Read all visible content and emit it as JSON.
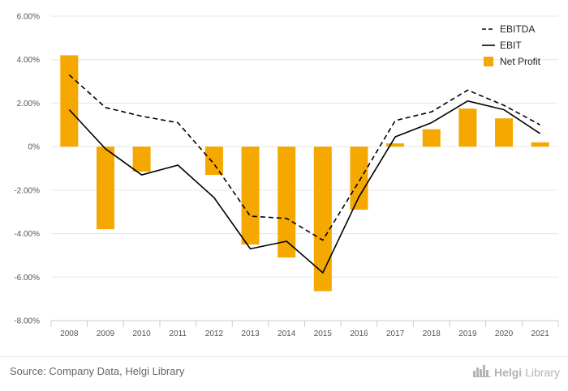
{
  "chart_data": {
    "type": "bar+line",
    "title": "",
    "xlabel": "",
    "ylabel": "",
    "ylim": [
      -8,
      6
    ],
    "yticks": [
      6,
      4,
      2,
      0,
      -2,
      -4,
      -6,
      -8
    ],
    "ytick_labels": [
      "6.00%",
      "4.00%",
      "2.00%",
      "0%",
      "-2.00%",
      "-4.00%",
      "-6.00%",
      "-8.00%"
    ],
    "grid": true,
    "legend_position": "top-right",
    "categories": [
      "2008",
      "2009",
      "2010",
      "2011",
      "2012",
      "2013",
      "2014",
      "2015",
      "2016",
      "2017",
      "2018",
      "2019",
      "2020",
      "2021"
    ],
    "series": [
      {
        "name": "EBITDA",
        "type": "line",
        "style": "dashed",
        "color": "#000000",
        "values": [
          3.3,
          1.8,
          1.4,
          1.1,
          -0.8,
          -3.2,
          -3.3,
          -4.3,
          -1.6,
          1.2,
          1.6,
          2.6,
          1.9,
          1.0
        ]
      },
      {
        "name": "EBIT",
        "type": "line",
        "style": "solid",
        "color": "#000000",
        "values": [
          1.7,
          -0.1,
          -1.3,
          -0.85,
          -2.35,
          -4.7,
          -4.35,
          -5.8,
          -2.3,
          0.45,
          1.1,
          2.1,
          1.7,
          0.6
        ]
      },
      {
        "name": "Net Profit",
        "type": "bar",
        "color": "#F5A800",
        "values": [
          4.2,
          -3.8,
          -1.15,
          0,
          -1.3,
          -4.5,
          -5.1,
          -6.65,
          -2.9,
          0.15,
          0.8,
          1.75,
          1.3,
          0.2
        ]
      }
    ]
  },
  "footer": {
    "source": "Source: Company Data, Helgi Library",
    "brand_prefix": "Helgi",
    "brand_suffix": "Library"
  }
}
